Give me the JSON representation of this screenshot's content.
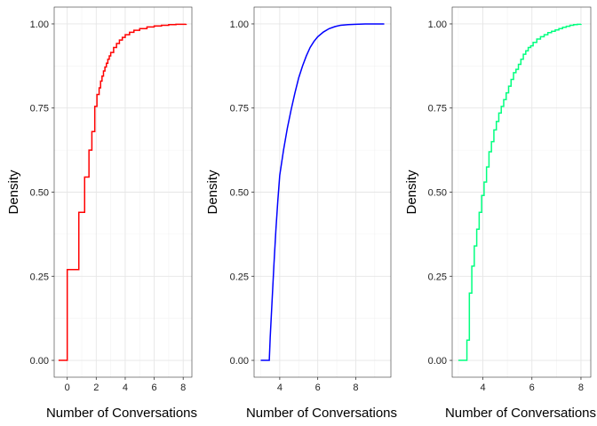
{
  "chart_data": [
    {
      "type": "line",
      "step": true,
      "color": "#ff0000",
      "xlabel": "Number of Conversations",
      "ylabel": "Density",
      "xlim": [
        -0.9,
        8.6
      ],
      "ylim": [
        -0.05,
        1.05
      ],
      "xticks": [
        0,
        2,
        4,
        6,
        8
      ],
      "yticks": [
        0.0,
        0.25,
        0.5,
        0.75,
        1.0
      ],
      "xtick_labels": [
        "0",
        "2",
        "4",
        "6",
        "8"
      ],
      "ytick_labels": [
        "0.00",
        "0.25",
        "0.50",
        "0.75",
        "1.00"
      ],
      "grid": true,
      "series": [
        {
          "x": [
            -0.6,
            0.0,
            0.0,
            0.8,
            0.8,
            1.2,
            1.2,
            1.5,
            1.5,
            1.7,
            1.7,
            1.9,
            1.9,
            2.05,
            2.05,
            2.2,
            2.3,
            2.4,
            2.5,
            2.6,
            2.7,
            2.8,
            2.9,
            3.0,
            3.2,
            3.4,
            3.6,
            3.8,
            4.0,
            4.3,
            4.6,
            5.0,
            5.5,
            6.0,
            6.5,
            7.0,
            7.5,
            8.2
          ],
          "y": [
            0.0,
            0.0,
            0.27,
            0.27,
            0.44,
            0.44,
            0.545,
            0.545,
            0.625,
            0.625,
            0.68,
            0.68,
            0.755,
            0.755,
            0.79,
            0.81,
            0.83,
            0.845,
            0.86,
            0.872,
            0.883,
            0.895,
            0.905,
            0.915,
            0.93,
            0.942,
            0.952,
            0.96,
            0.968,
            0.975,
            0.981,
            0.986,
            0.991,
            0.994,
            0.996,
            0.998,
            0.999,
            1.0
          ]
        }
      ]
    },
    {
      "type": "line",
      "step": false,
      "color": "#0000ff",
      "xlabel": "Number of Conversations",
      "ylabel": "Density",
      "xlim": [
        2.65,
        9.85
      ],
      "ylim": [
        -0.05,
        1.05
      ],
      "xticks": [
        4,
        6,
        8
      ],
      "yticks": [
        0.0,
        0.25,
        0.5,
        0.75,
        1.0
      ],
      "xtick_labels": [
        "4",
        "6",
        "8"
      ],
      "ytick_labels": [
        "0.00",
        "0.25",
        "0.50",
        "0.75",
        "1.00"
      ],
      "grid": true,
      "series": [
        {
          "x": [
            3.0,
            3.45,
            3.5,
            3.6,
            3.7,
            3.8,
            3.9,
            4.0,
            4.2,
            4.4,
            4.6,
            4.8,
            5.0,
            5.2,
            5.4,
            5.6,
            5.8,
            6.0,
            6.3,
            6.6,
            6.9,
            7.2,
            7.6,
            8.0,
            8.5,
            9.0,
            9.5
          ],
          "y": [
            0.0,
            0.0,
            0.07,
            0.18,
            0.29,
            0.39,
            0.475,
            0.55,
            0.625,
            0.69,
            0.745,
            0.795,
            0.84,
            0.875,
            0.905,
            0.93,
            0.948,
            0.962,
            0.976,
            0.986,
            0.992,
            0.996,
            0.998,
            0.999,
            1.0,
            1.0,
            1.0
          ]
        }
      ]
    },
    {
      "type": "line",
      "step": true,
      "color": "#00ff7f",
      "xlabel": "Number of Conversations",
      "ylabel": "Density",
      "xlim": [
        2.75,
        8.4
      ],
      "ylim": [
        -0.05,
        1.05
      ],
      "xticks": [
        4,
        6,
        8
      ],
      "yticks": [
        0.0,
        0.25,
        0.5,
        0.75,
        1.0
      ],
      "xtick_labels": [
        "4",
        "6",
        "8"
      ],
      "ytick_labels": [
        "0.00",
        "0.25",
        "0.50",
        "0.75",
        "1.00"
      ],
      "grid": true,
      "series": [
        {
          "x": [
            3.0,
            3.35,
            3.35,
            3.45,
            3.55,
            3.65,
            3.75,
            3.85,
            3.95,
            4.05,
            4.15,
            4.25,
            4.35,
            4.45,
            4.55,
            4.65,
            4.75,
            4.85,
            4.95,
            5.05,
            5.15,
            5.25,
            5.35,
            5.45,
            5.55,
            5.65,
            5.75,
            5.85,
            5.95,
            6.05,
            6.2,
            6.35,
            6.5,
            6.65,
            6.8,
            6.95,
            7.1,
            7.25,
            7.4,
            7.55,
            7.7,
            7.85,
            8.0
          ],
          "y": [
            0.0,
            0.0,
            0.06,
            0.2,
            0.28,
            0.34,
            0.39,
            0.44,
            0.49,
            0.53,
            0.575,
            0.62,
            0.65,
            0.685,
            0.71,
            0.735,
            0.755,
            0.775,
            0.795,
            0.815,
            0.835,
            0.855,
            0.865,
            0.88,
            0.895,
            0.91,
            0.92,
            0.93,
            0.935,
            0.945,
            0.955,
            0.962,
            0.968,
            0.974,
            0.978,
            0.982,
            0.986,
            0.99,
            0.993,
            0.996,
            0.998,
            0.999,
            1.0
          ]
        }
      ]
    }
  ]
}
